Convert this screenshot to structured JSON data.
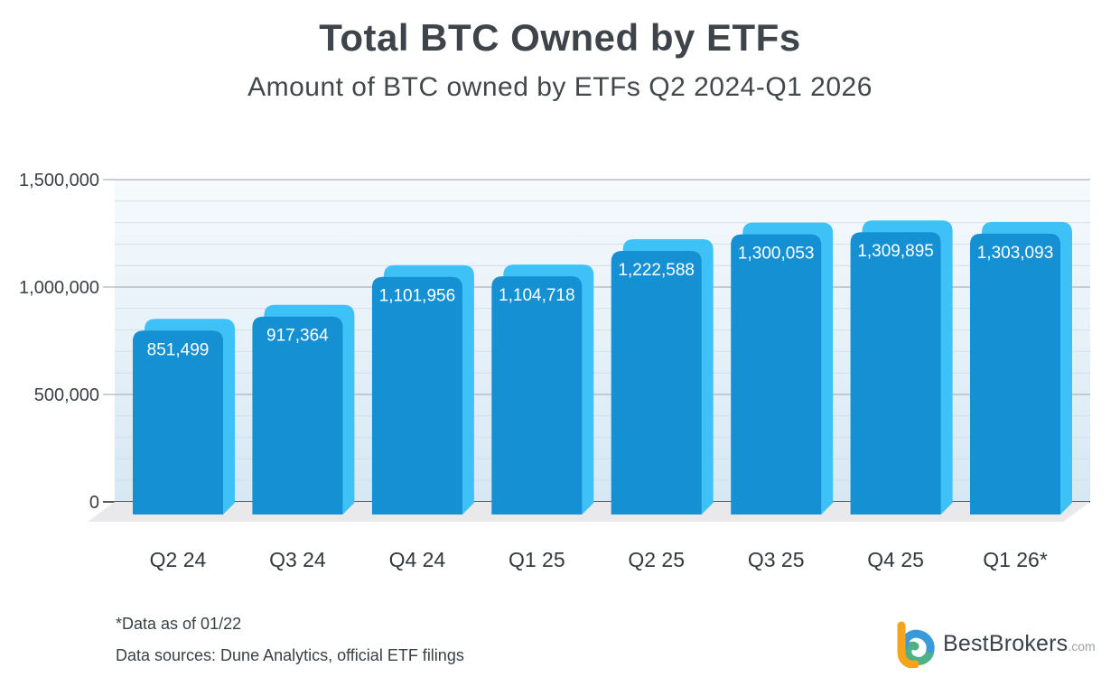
{
  "chart_data": {
    "type": "bar",
    "title": "Total BTC Owned by ETFs",
    "subtitle": "Amount of BTC owned by ETFs Q2 2024-Q1 2026",
    "categories": [
      "Q2 24",
      "Q3 24",
      "Q4 24",
      "Q1 25",
      "Q2 25",
      "Q3 25",
      "Q4 25",
      "Q1 26*"
    ],
    "values": [
      851499,
      917364,
      1101956,
      1104718,
      1222588,
      1300053,
      1309895,
      1303093
    ],
    "value_labels": [
      "851,499",
      "917,364",
      "1,101,956",
      "1,104,718",
      "1,222,588",
      "1,300,053",
      "1,309,895",
      "1,303,093"
    ],
    "xlabel": "",
    "ylabel": "",
    "ylim": [
      0,
      1500000
    ],
    "y_ticks": [
      {
        "value": 0,
        "label": "0"
      },
      {
        "value": 500000,
        "label": "500,000"
      },
      {
        "value": 1000000,
        "label": "1,000,000"
      },
      {
        "value": 1500000,
        "label": "1,500,000"
      }
    ],
    "minor_grid_interval": 100000,
    "grid": "horizontal, minor lines every 100,000",
    "legend": "none",
    "style": {
      "bar_front": "#1591d3",
      "bar_back": "#3ec1f6",
      "value_label_color": "#ffffff",
      "plot_bg_top": "#f6fafd",
      "plot_bg_bottom": "#d6e8f4",
      "floor": "#e9e9eb",
      "grid_minor": "#d4dfe8",
      "grid_major": "#aeb4ba",
      "axis_zero": "#54585c",
      "text": "#3a4045",
      "x_label_color": "#33383d"
    }
  },
  "footnotes": [
    "*Data as of 01/22",
    "Data sources: Dune Analytics, official ETF filings"
  ],
  "logo": {
    "brand": "BestBrokers",
    "tld": ".com",
    "colors": {
      "orange": "#f6a41c",
      "blue": "#3a99d8",
      "green": "#4fb286"
    }
  }
}
